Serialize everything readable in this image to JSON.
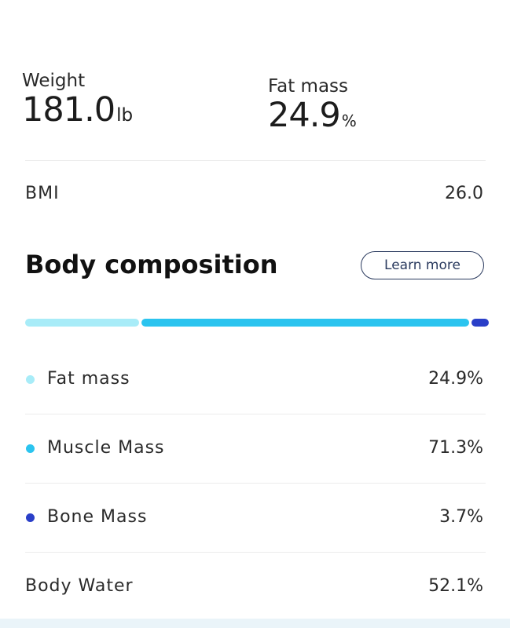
{
  "summary": {
    "weight": {
      "label": "Weight",
      "value": "181.0",
      "unit": "lb"
    },
    "fat_mass": {
      "label": "Fat mass",
      "value": "24.9",
      "unit": "%"
    }
  },
  "bmi": {
    "label": "BMI",
    "value": "26.0"
  },
  "body_composition": {
    "title": "Body composition",
    "learn_more_label": "Learn more",
    "bar": [
      {
        "name": "Fat mass",
        "percent": 24.9,
        "color": "#a8ecf8"
      },
      {
        "name": "Muscle Mass",
        "percent": 71.3,
        "color": "#2bc4ef"
      },
      {
        "name": "Bone Mass",
        "percent": 3.7,
        "color": "#2a3fc8"
      }
    ],
    "rows": [
      {
        "label": "Fat mass",
        "value": "24.9%",
        "color": "#a8ecf8"
      },
      {
        "label": "Muscle Mass",
        "value": "71.3%",
        "color": "#2bc4ef"
      },
      {
        "label": "Bone Mass",
        "value": "3.7%",
        "color": "#2a3fc8"
      }
    ]
  },
  "body_water": {
    "label": "Body Water",
    "value": "52.1%"
  }
}
